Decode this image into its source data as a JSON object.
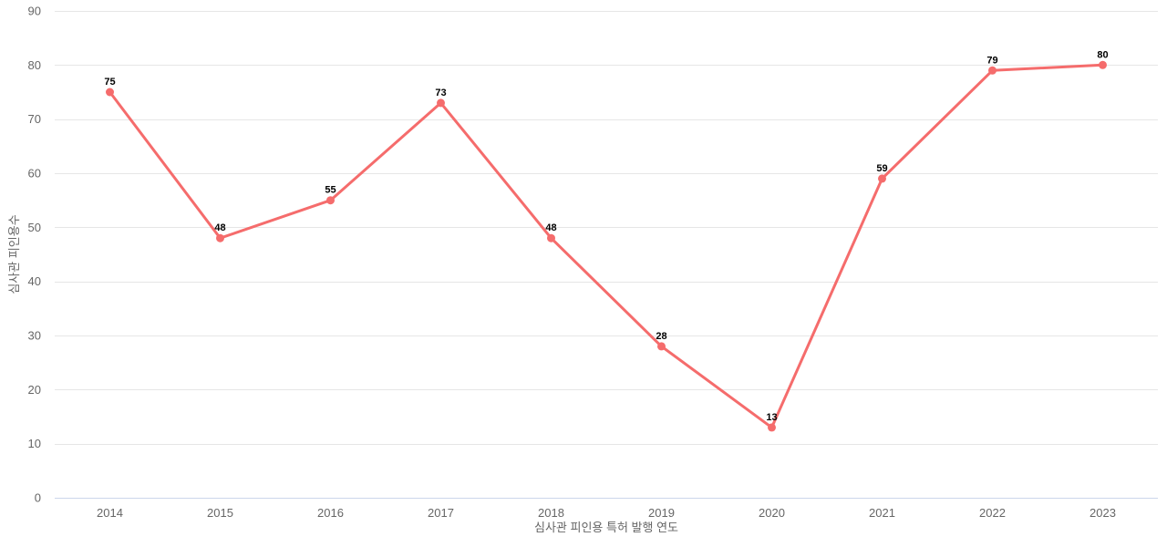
{
  "chart_data": {
    "type": "line",
    "categories": [
      "2014",
      "2015",
      "2016",
      "2017",
      "2018",
      "2019",
      "2020",
      "2021",
      "2022",
      "2023"
    ],
    "values": [
      75,
      48,
      55,
      73,
      48,
      28,
      13,
      59,
      79,
      80
    ],
    "title": "",
    "xlabel": "심사관 피인용 특허 발행 연도",
    "ylabel": "심사관 피인용수",
    "ylim": [
      0,
      90
    ],
    "ytick_interval": 10,
    "ytick_labels": [
      "0",
      "10",
      "20",
      "30",
      "40",
      "50",
      "60",
      "70",
      "80",
      "90"
    ],
    "grid": true,
    "legend_position": "none",
    "data_labels_visible": true,
    "colors": {
      "series": "#f56c6c",
      "marker": "#f56c6c",
      "gridline": "#e6e6e6",
      "axis_line": "#ccd6eb",
      "tick_label": "#666666",
      "axis_title": "#666666",
      "data_label": "#000000",
      "background": "#ffffff"
    }
  }
}
